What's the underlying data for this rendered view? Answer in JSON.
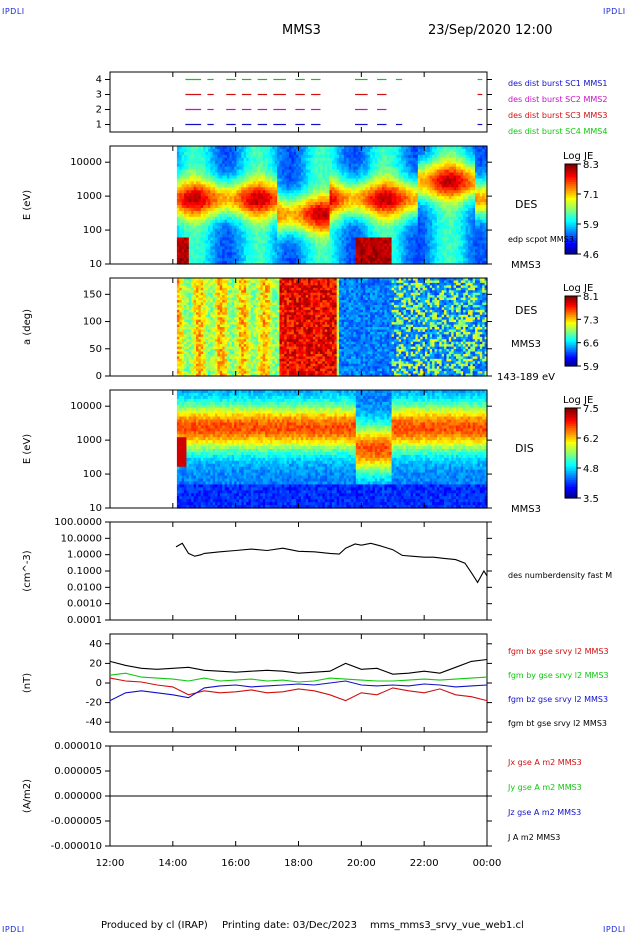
{
  "header": {
    "corner_label": "IPDLI",
    "spacecraft": "MMS3",
    "datetime": "23/Sep/2020 12:00"
  },
  "footer": {
    "produced_by": "Produced by cl (IRAP)",
    "printing_date": "Printing date: 03/Dec/2023",
    "config": "mms_mms3_srvy_vue_web1.cl"
  },
  "time_axis": {
    "labels": [
      "12:00",
      "14:00",
      "16:00",
      "18:00",
      "20:00",
      "22:00",
      "00:00"
    ],
    "range_hours": [
      12,
      24
    ]
  },
  "chart_data": [
    {
      "id": "panel1",
      "type": "scatter",
      "yticks": [
        "4",
        "3",
        "2",
        "1"
      ],
      "ylim": [
        0.5,
        4.5
      ],
      "legend": [
        {
          "text": "des dist burst SC1 MMS1",
          "color": "#1010c8"
        },
        {
          "text": "des dist burst SC2 MMS2",
          "color": "#c810c8"
        },
        {
          "text": "des dist burst SC3 MMS3",
          "color": "#d01010"
        },
        {
          "text": "des dist burst SC4 MMS4",
          "color": "#10c810"
        }
      ],
      "series": [
        {
          "y": 4,
          "color": "#10c810",
          "intervals": [
            [
              14.4,
              14.9
            ],
            [
              15.1,
              15.3
            ],
            [
              15.7,
              16.0
            ],
            [
              16.2,
              16.5
            ],
            [
              16.7,
              17.0
            ],
            [
              17.2,
              17.6
            ],
            [
              17.9,
              18.2
            ],
            [
              18.4,
              18.7
            ],
            [
              19.8,
              20.2
            ],
            [
              20.5,
              20.8
            ],
            [
              21.1,
              21.3
            ],
            [
              23.7,
              23.85
            ]
          ]
        },
        {
          "y": 3,
          "color": "#d01010",
          "intervals": [
            [
              14.4,
              14.9
            ],
            [
              15.1,
              15.3
            ],
            [
              15.7,
              16.0
            ],
            [
              16.2,
              16.5
            ],
            [
              16.7,
              17.0
            ],
            [
              17.2,
              17.6
            ],
            [
              17.9,
              18.2
            ],
            [
              18.4,
              18.7
            ],
            [
              19.8,
              20.2
            ],
            [
              20.5,
              20.8
            ],
            [
              23.7,
              23.85
            ]
          ]
        },
        {
          "y": 2,
          "color": "#c810c8",
          "intervals": [
            [
              14.4,
              14.9
            ],
            [
              15.1,
              15.3
            ],
            [
              15.7,
              16.0
            ],
            [
              16.2,
              16.5
            ],
            [
              16.7,
              17.0
            ],
            [
              17.2,
              17.6
            ],
            [
              17.9,
              18.2
            ],
            [
              18.4,
              18.7
            ],
            [
              19.8,
              20.2
            ],
            [
              20.5,
              20.8
            ],
            [
              23.7,
              23.85
            ]
          ]
        },
        {
          "y": 1,
          "color": "#1010c8",
          "intervals": [
            [
              14.4,
              14.9
            ],
            [
              15.1,
              15.3
            ],
            [
              15.7,
              16.0
            ],
            [
              16.2,
              16.5
            ],
            [
              16.7,
              17.0
            ],
            [
              17.2,
              17.6
            ],
            [
              17.9,
              18.2
            ],
            [
              18.4,
              18.7
            ],
            [
              19.8,
              20.2
            ],
            [
              20.5,
              20.8
            ],
            [
              21.1,
              21.3
            ],
            [
              23.7,
              23.85
            ]
          ]
        }
      ]
    },
    {
      "id": "panel2",
      "type": "heatmap",
      "ylabel": "E (eV)",
      "yticks": [
        "10000",
        "1000",
        "100",
        "10"
      ],
      "log": true,
      "ylim": [
        10,
        30000
      ],
      "data_start": 14.13,
      "side_labels": [
        "DES",
        "edp scpot MMS3",
        "MMS3"
      ],
      "colorbar": {
        "title": "Log JE",
        "ticks": [
          "8.3",
          "7.1",
          "5.9",
          "4.6"
        ]
      }
    },
    {
      "id": "panel3",
      "type": "heatmap",
      "ylabel": "a (deg)",
      "yticks": [
        "150",
        "100",
        "50",
        "0"
      ],
      "ylim": [
        0,
        180
      ],
      "data_start": 14.13,
      "side_labels": [
        "DES",
        "MMS3",
        "143-189 eV"
      ],
      "colorbar": {
        "title": "Log JE",
        "ticks": [
          "8.1",
          "7.3",
          "6.6",
          "5.9"
        ]
      }
    },
    {
      "id": "panel4",
      "type": "heatmap",
      "ylabel": "E (eV)",
      "yticks": [
        "10000",
        "1000",
        "100",
        "10"
      ],
      "log": true,
      "ylim": [
        10,
        30000
      ],
      "data_start": 14.13,
      "side_labels": [
        "DIS",
        "MMS3"
      ],
      "colorbar": {
        "title": "Log JE",
        "ticks": [
          "7.5",
          "6.2",
          "4.8",
          "3.5"
        ]
      }
    },
    {
      "id": "panel5",
      "type": "line",
      "ylabel": "(cm^-3)",
      "yticks": [
        "100.0000",
        "10.0000",
        "1.0000",
        "0.1000",
        "0.0100",
        "0.0010",
        "0.0001"
      ],
      "log": true,
      "ylim": [
        0.0001,
        100
      ],
      "series": [
        {
          "name": "des numberdensity fast M",
          "color": "#000000",
          "x": [
            14.1,
            14.3,
            14.5,
            14.7,
            14.9,
            15.0,
            15.5,
            16.0,
            16.5,
            17.0,
            17.5,
            18.0,
            18.5,
            19.0,
            19.3,
            19.5,
            19.8,
            20.0,
            20.3,
            20.6,
            21.0,
            21.3,
            21.6,
            22.0,
            22.3,
            22.6,
            23.0,
            23.3,
            23.5,
            23.7,
            23.9,
            24.0
          ],
          "y": [
            3,
            5,
            1.2,
            0.8,
            1.0,
            1.2,
            1.5,
            1.8,
            2.2,
            1.8,
            2.5,
            1.6,
            1.5,
            1.2,
            1.1,
            2.5,
            4.5,
            3.8,
            5.0,
            3.5,
            2.0,
            0.9,
            0.8,
            0.7,
            0.7,
            0.6,
            0.5,
            0.3,
            0.08,
            0.02,
            0.1,
            0.05
          ]
        }
      ]
    },
    {
      "id": "panel6",
      "type": "line",
      "ylabel": "(nT)",
      "yticks": [
        "40",
        "20",
        "0",
        "-20",
        "-40"
      ],
      "ylim": [
        -50,
        50
      ],
      "series": [
        {
          "name": "fgm bx gse srvy l2 MMS3",
          "color": "#d01010",
          "x": [
            12.0,
            12.5,
            13.0,
            13.5,
            14.0,
            14.5,
            15.0,
            15.5,
            16.0,
            16.5,
            17.0,
            17.5,
            18.0,
            18.5,
            19.0,
            19.5,
            20.0,
            20.5,
            21.0,
            21.5,
            22.0,
            22.5,
            23.0,
            23.5,
            24.0
          ],
          "y": [
            5,
            2,
            1,
            -2,
            -4,
            -12,
            -8,
            -10,
            -9,
            -7,
            -10,
            -9,
            -6,
            -8,
            -12,
            -18,
            -10,
            -12,
            -5,
            -8,
            -10,
            -6,
            -12,
            -14,
            -18
          ]
        },
        {
          "name": "fgm by gse srvy l2 MMS3",
          "color": "#10c810",
          "x": [
            12.0,
            12.5,
            13.0,
            13.5,
            14.0,
            14.5,
            15.0,
            15.5,
            16.0,
            16.5,
            17.0,
            17.5,
            18.0,
            18.5,
            19.0,
            19.5,
            20.0,
            20.5,
            21.0,
            21.5,
            22.0,
            22.5,
            23.0,
            23.5,
            24.0
          ],
          "y": [
            8,
            10,
            6,
            5,
            4,
            2,
            5,
            2,
            3,
            4,
            2,
            3,
            1,
            2,
            5,
            4,
            3,
            2,
            2,
            3,
            4,
            3,
            4,
            5,
            6
          ]
        },
        {
          "name": "fgm bz gse srvy l2 MMS3",
          "color": "#1010c8",
          "x": [
            12.0,
            12.5,
            13.0,
            13.5,
            14.0,
            14.5,
            15.0,
            15.5,
            16.0,
            16.5,
            17.0,
            17.5,
            18.0,
            18.5,
            19.0,
            19.5,
            20.0,
            20.5,
            21.0,
            21.5,
            22.0,
            22.5,
            23.0,
            23.5,
            24.0
          ],
          "y": [
            -18,
            -10,
            -8,
            -10,
            -12,
            -15,
            -5,
            -3,
            -2,
            -4,
            -3,
            -2,
            -1,
            -2,
            0,
            2,
            -2,
            -3,
            -2,
            -3,
            -1,
            -2,
            -4,
            -3,
            -2
          ]
        },
        {
          "name": "fgm bt gse srvy l2 MMS3",
          "color": "#000000",
          "x": [
            12.0,
            12.5,
            13.0,
            13.5,
            14.0,
            14.5,
            15.0,
            15.5,
            16.0,
            16.5,
            17.0,
            17.5,
            18.0,
            18.5,
            19.0,
            19.5,
            20.0,
            20.5,
            21.0,
            21.5,
            22.0,
            22.5,
            23.0,
            23.5,
            24.0
          ],
          "y": [
            22,
            18,
            15,
            14,
            15,
            16,
            13,
            12,
            11,
            12,
            13,
            12,
            10,
            11,
            12,
            20,
            14,
            15,
            9,
            10,
            12,
            10,
            16,
            22,
            24
          ]
        }
      ]
    },
    {
      "id": "panel7",
      "type": "line",
      "ylabel": "(A/m2)",
      "yticks": [
        "0.000010",
        "0.000005",
        "0.000000",
        "-0.000005",
        "-0.000010"
      ],
      "ylim": [
        -1e-05,
        1e-05
      ],
      "series": [
        {
          "name": "Jx gse A m2 MMS3",
          "color": "#d01010",
          "x": [
            12.0,
            24.0
          ],
          "y": [
            0,
            0
          ]
        },
        {
          "name": "Jy gse A m2 MMS3",
          "color": "#10c810",
          "x": [
            12.0,
            24.0
          ],
          "y": [
            0,
            0
          ]
        },
        {
          "name": "Jz gse A m2 MMS3",
          "color": "#1010c8",
          "x": [
            12.0,
            24.0
          ],
          "y": [
            0,
            0
          ]
        },
        {
          "name": "J A m2 MMS3",
          "color": "#000000",
          "x": [
            12.0,
            24.0
          ],
          "y": [
            0,
            0
          ]
        }
      ]
    }
  ]
}
